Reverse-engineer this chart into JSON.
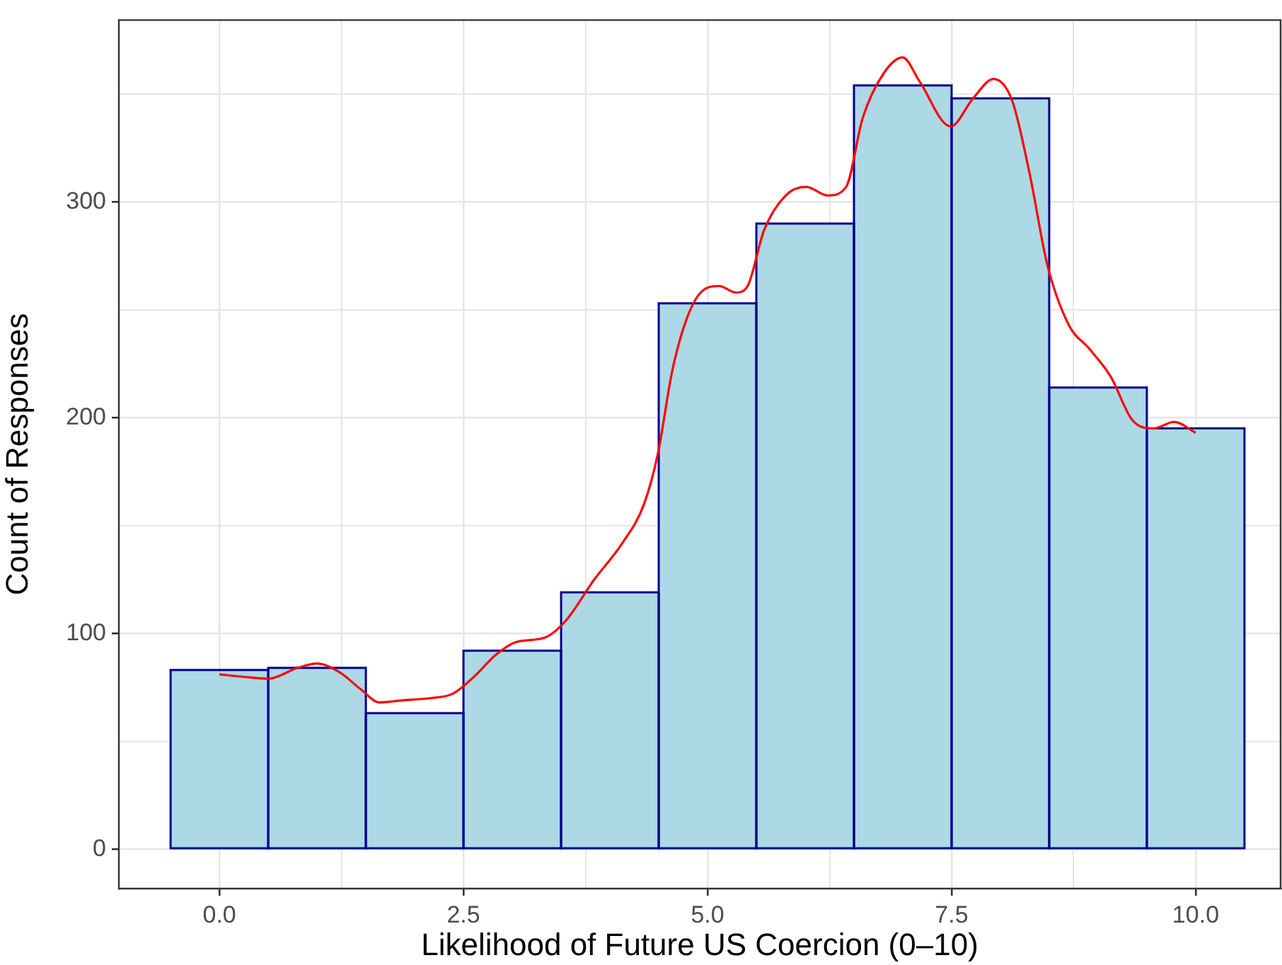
{
  "chart_data": {
    "type": "histogram",
    "xlabel": "Likelihood of Future US Coercion (0–10)",
    "ylabel": "Count of Responses",
    "bins": [
      -0.5,
      0.5,
      1.5,
      2.5,
      3.5,
      4.5,
      5.5,
      6.5,
      7.5,
      8.5,
      9.5,
      10.5
    ],
    "values": [
      83,
      84,
      63,
      92,
      119,
      253,
      290,
      354,
      348,
      214,
      195
    ],
    "color": "#add8e6",
    "series": [
      {
        "type": "line",
        "color": "#ff0000",
        "x": [
          0,
          0.22,
          0.5,
          0.8,
          1.0,
          1.23,
          1.45,
          1.64,
          1.88,
          2.17,
          2.39,
          2.61,
          2.83,
          3.04,
          3.33,
          3.55,
          3.84,
          4.13,
          4.35,
          4.49,
          4.64,
          4.78,
          4.93,
          5.12,
          5.29,
          5.41,
          5.58,
          5.8,
          6.01,
          6.23,
          6.42,
          6.59,
          6.81,
          7.0,
          7.17,
          7.49,
          7.72,
          7.93,
          8.12,
          8.3,
          8.48,
          8.7,
          8.91,
          9.13,
          9.35,
          9.57,
          9.78,
          10.0
        ],
        "values": [
          81,
          80,
          79,
          84,
          86,
          82,
          74,
          68,
          69,
          70,
          72,
          80,
          90,
          96,
          98,
          106,
          125,
          142,
          160,
          183,
          222,
          245,
          258,
          261,
          258,
          261,
          287,
          303,
          307,
          303,
          307,
          339,
          360,
          367,
          356,
          335,
          348,
          357,
          347,
          313,
          271,
          243,
          232,
          219,
          199,
          195,
          198,
          193
        ]
      }
    ],
    "xlim": [
      -1.03,
      10.87
    ],
    "ylim": [
      -18.3,
      384.3
    ],
    "xticks": [
      {
        "value": 0,
        "label": "0.0"
      },
      {
        "value": 1.25,
        "label": null
      },
      {
        "value": 2.5,
        "label": "2.5"
      },
      {
        "value": 3.75,
        "label": null
      },
      {
        "value": 5,
        "label": "5.0"
      },
      {
        "value": 6.25,
        "label": null
      },
      {
        "value": 7.5,
        "label": "7.5"
      },
      {
        "value": 8.75,
        "label": null
      },
      {
        "value": 10,
        "label": "10.0"
      }
    ],
    "yticks": [
      0,
      {
        "value": 50,
        "label": null
      },
      100,
      {
        "value": 150,
        "label": null
      },
      200,
      {
        "value": 250,
        "label": null
      },
      300,
      {
        "value": 350,
        "label": null
      }
    ],
    "grid": true,
    "legend": false
  }
}
